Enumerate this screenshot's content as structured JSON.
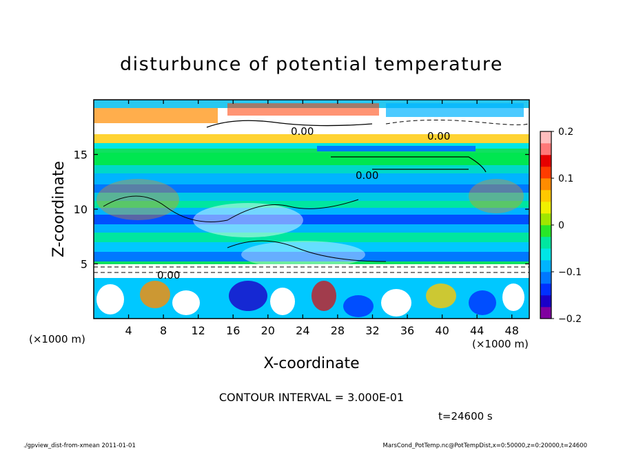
{
  "chart_data": {
    "type": "heatmap",
    "title": "disturbunce of potential temperature",
    "xlabel": "X-coordinate",
    "ylabel": "Z-coordinate",
    "x_unit": "(×1000 m)",
    "y_unit": "(×1000 m)",
    "xlim": [
      0,
      50
    ],
    "ylim": [
      0,
      20
    ],
    "x_ticks": [
      4,
      8,
      12,
      16,
      20,
      24,
      28,
      32,
      36,
      40,
      44,
      48
    ],
    "y_ticks": [
      5,
      10,
      15
    ],
    "colorbar": {
      "range": [
        -0.2,
        0.2
      ],
      "tick_values": [
        0.2,
        0.1,
        0,
        -0.1,
        -0.2
      ],
      "tick_labels": [
        "0.2",
        "0.1",
        "0",
        "−0.1",
        "−0.2"
      ],
      "colors": [
        "#8000a0",
        "#1a00c8",
        "#0030ff",
        "#0078ff",
        "#00b4ff",
        "#00e6e6",
        "#00e6a0",
        "#28e628",
        "#a0e600",
        "#f0f000",
        "#ffc800",
        "#ff8c00",
        "#ff3c00",
        "#e60000",
        "#ff7878",
        "#ffbebe"
      ]
    },
    "contour_labels": [
      "0.00",
      "0.00",
      "0.00",
      "0.00"
    ],
    "contour_interval": "CONTOUR INTERVAL = 3.000E-01",
    "grid": false
  },
  "annotations": {
    "time": "t=24600 s",
    "footer_left": "./gpview_dist-from-xmean  2011-01-01",
    "footer_right": "MarsCond_PotTemp.nc@PotTempDist,x=0:50000,z=0:20000,t=24600"
  }
}
